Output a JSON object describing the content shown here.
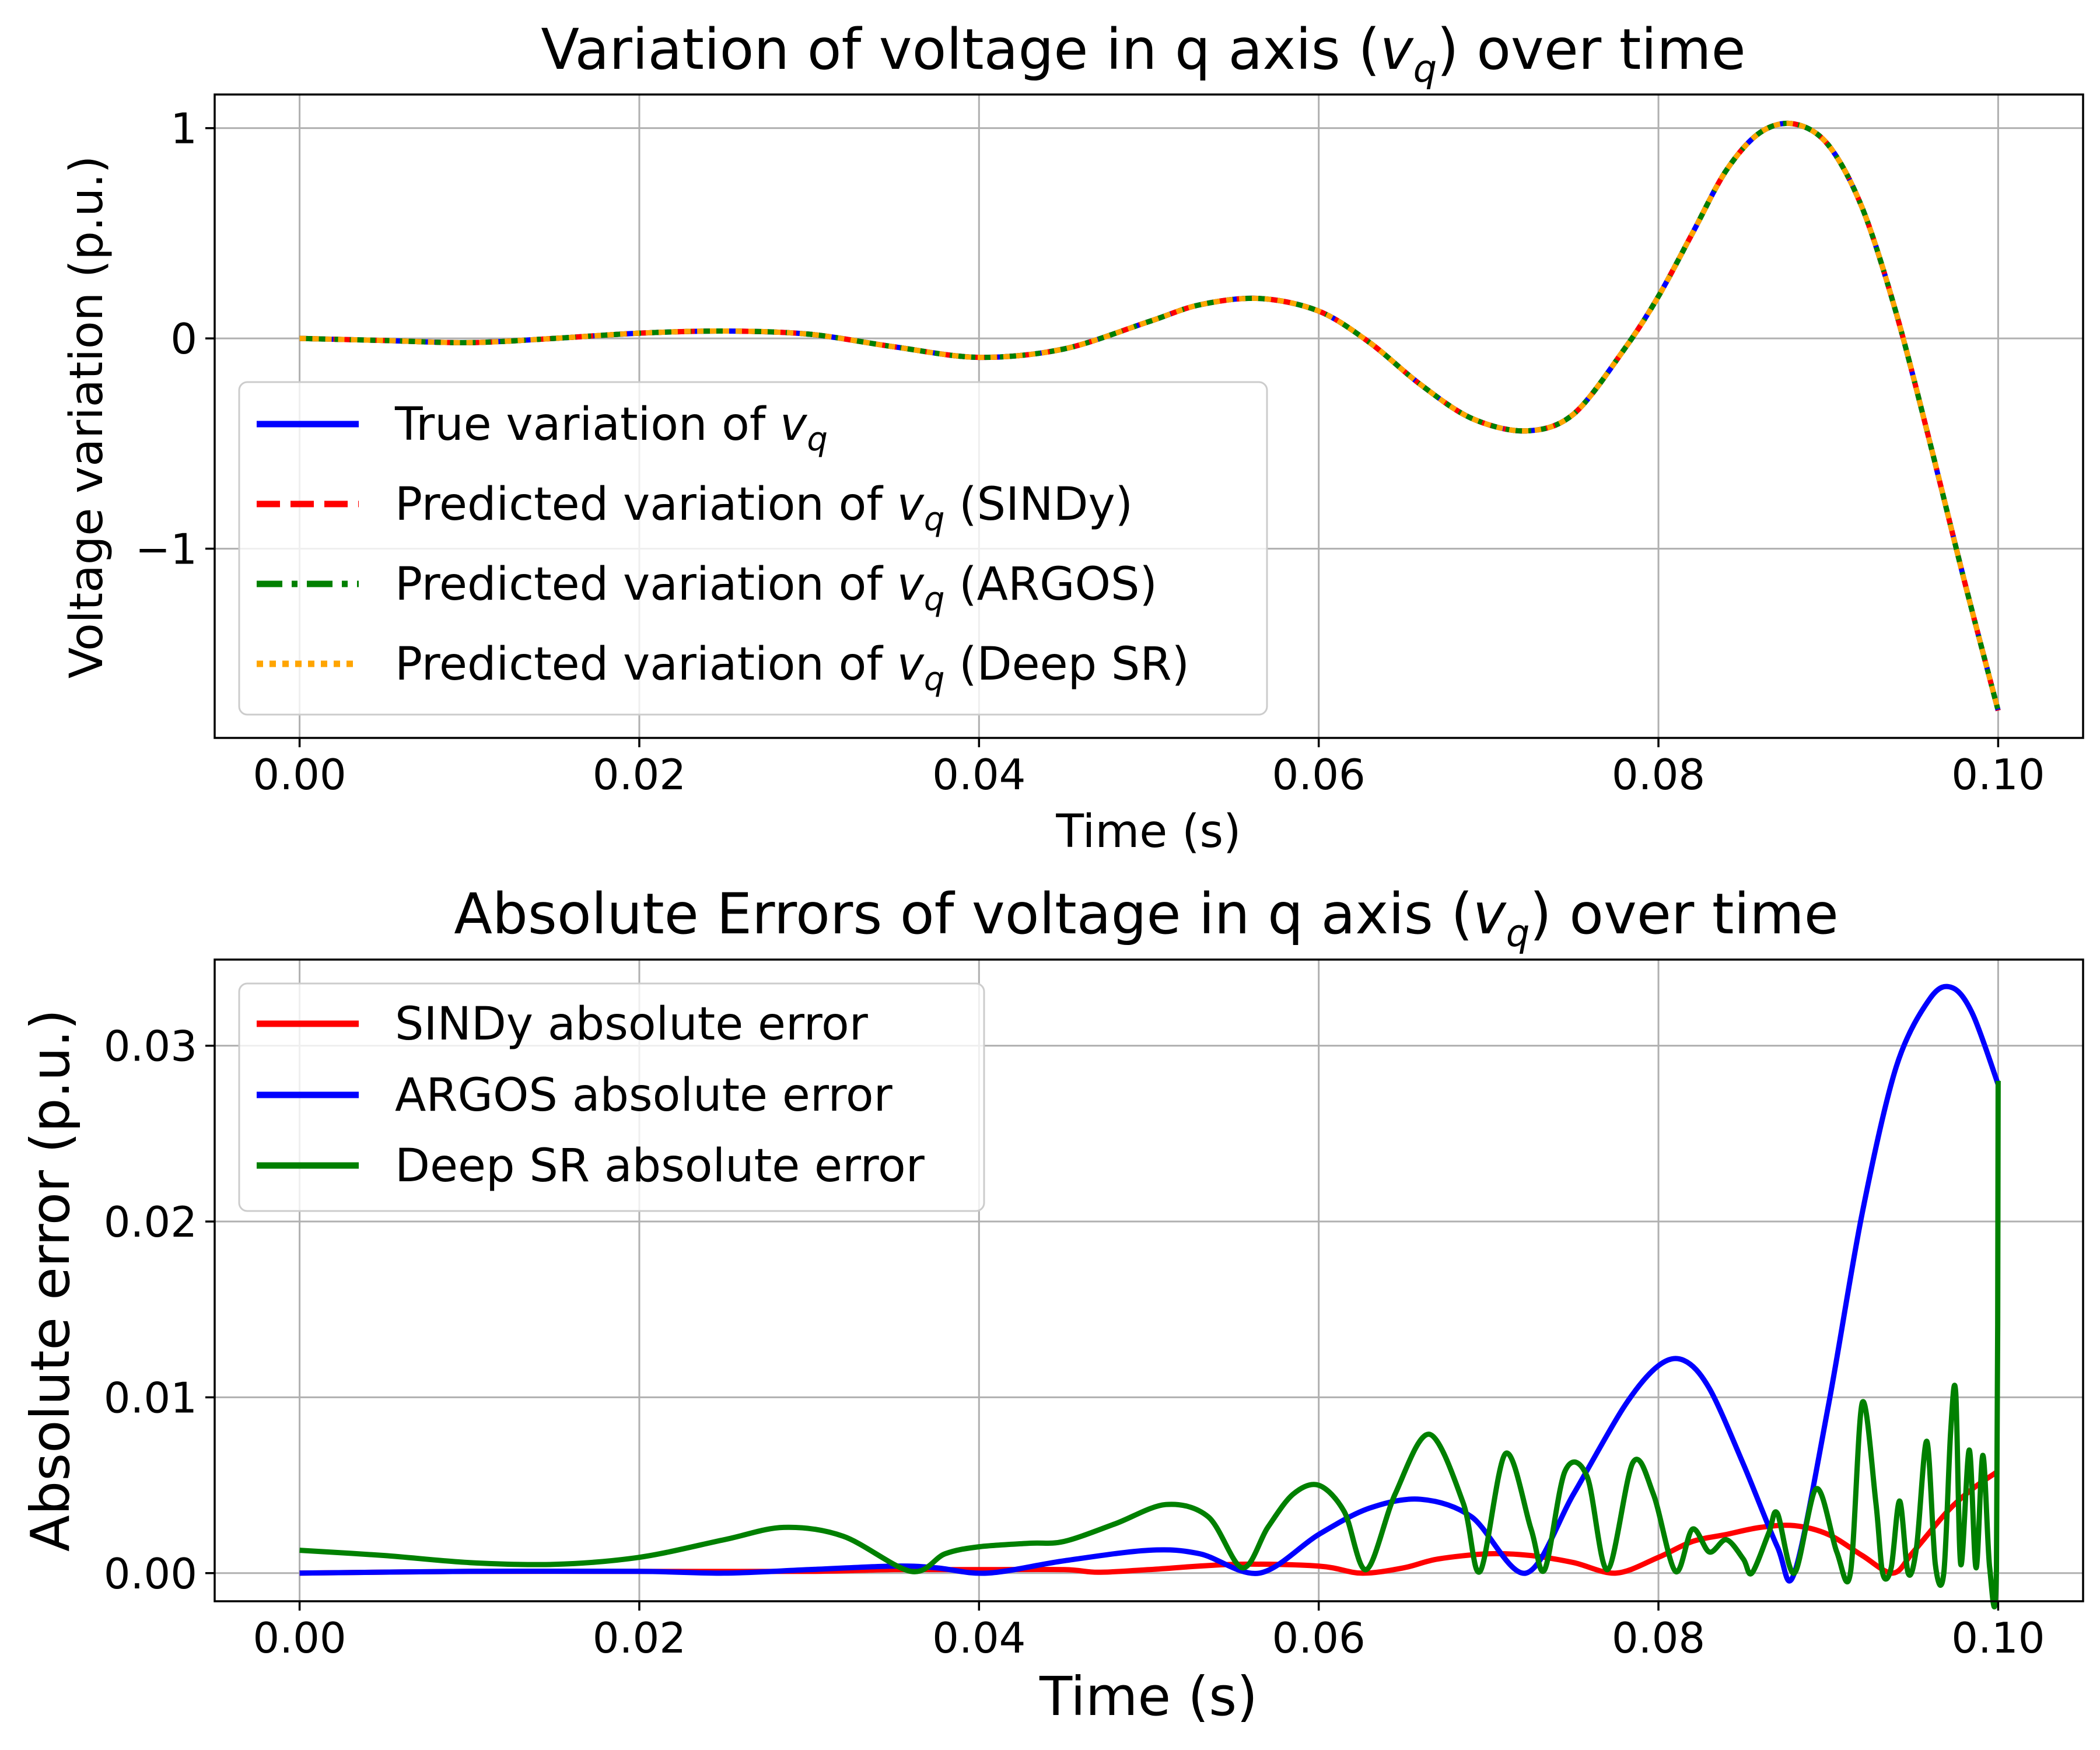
{
  "chart_data": [
    {
      "type": "line",
      "title_prefix": "Variation of voltage in q axis (",
      "title_var": "v",
      "title_sub": "q",
      "title_suffix": ") over time",
      "xlabel": "Time (s)",
      "ylabel": "Voltage variation (p.u.)",
      "xlim": [
        -0.005,
        0.105
      ],
      "ylim": [
        -1.9,
        1.16
      ],
      "xticks": [
        0.0,
        0.02,
        0.04,
        0.06,
        0.08,
        0.1
      ],
      "xtick_labels": [
        "0.00",
        "0.02",
        "0.04",
        "0.06",
        "0.08",
        "0.10"
      ],
      "yticks": [
        1,
        0,
        -1
      ],
      "ytick_labels": [
        "1",
        "0",
        "−1"
      ],
      "grid": true,
      "legend_position": "lower-left",
      "series": [
        {
          "legend_prefix": "True variation of ",
          "legend_suffix": "",
          "color": "#0000ff",
          "dash": "solid",
          "x": [
            0.0,
            0.005,
            0.01,
            0.015,
            0.02,
            0.025,
            0.03,
            0.035,
            0.04,
            0.045,
            0.05,
            0.053,
            0.0565,
            0.06,
            0.063,
            0.066,
            0.069,
            0.0722,
            0.075,
            0.078,
            0.08,
            0.082,
            0.084,
            0.086,
            0.088,
            0.09,
            0.092,
            0.094,
            0.096,
            0.098,
            0.1
          ],
          "y": [
            0.0,
            -0.01,
            -0.02,
            0.0,
            0.025,
            0.035,
            0.02,
            -0.04,
            -0.09,
            -0.05,
            0.08,
            0.16,
            0.19,
            0.13,
            -0.02,
            -0.22,
            -0.38,
            -0.44,
            -0.36,
            -0.05,
            0.2,
            0.5,
            0.8,
            0.98,
            1.02,
            0.92,
            0.62,
            0.12,
            -0.5,
            -1.15,
            -1.77
          ]
        },
        {
          "legend_prefix": "Predicted variation of ",
          "legend_suffix": " (SINDy)",
          "color": "#ff0000",
          "dash": "dashed",
          "x": [
            0.0,
            0.005,
            0.01,
            0.015,
            0.02,
            0.025,
            0.03,
            0.035,
            0.04,
            0.045,
            0.05,
            0.053,
            0.0565,
            0.06,
            0.063,
            0.066,
            0.069,
            0.0722,
            0.075,
            0.078,
            0.08,
            0.082,
            0.084,
            0.086,
            0.088,
            0.09,
            0.092,
            0.094,
            0.096,
            0.098,
            0.1
          ],
          "y": [
            0.0,
            -0.01,
            -0.02,
            0.0,
            0.025,
            0.035,
            0.02,
            -0.04,
            -0.09,
            -0.05,
            0.08,
            0.16,
            0.19,
            0.13,
            -0.02,
            -0.22,
            -0.38,
            -0.44,
            -0.36,
            -0.05,
            0.2,
            0.5,
            0.8,
            0.98,
            1.02,
            0.92,
            0.62,
            0.12,
            -0.5,
            -1.15,
            -1.77
          ]
        },
        {
          "legend_prefix": "Predicted variation of ",
          "legend_suffix": " (ARGOS)",
          "color": "#008000",
          "dash": "dashdot",
          "x": [
            0.0,
            0.005,
            0.01,
            0.015,
            0.02,
            0.025,
            0.03,
            0.035,
            0.04,
            0.045,
            0.05,
            0.053,
            0.0565,
            0.06,
            0.063,
            0.066,
            0.069,
            0.0722,
            0.075,
            0.078,
            0.08,
            0.082,
            0.084,
            0.086,
            0.088,
            0.09,
            0.092,
            0.094,
            0.096,
            0.098,
            0.1
          ],
          "y": [
            0.0,
            -0.01,
            -0.02,
            0.0,
            0.025,
            0.035,
            0.02,
            -0.04,
            -0.09,
            -0.05,
            0.08,
            0.16,
            0.19,
            0.13,
            -0.02,
            -0.22,
            -0.38,
            -0.44,
            -0.36,
            -0.05,
            0.2,
            0.5,
            0.8,
            0.98,
            1.02,
            0.92,
            0.62,
            0.12,
            -0.5,
            -1.15,
            -1.77
          ]
        },
        {
          "legend_prefix": "Predicted variation of ",
          "legend_suffix": " (Deep SR)",
          "color": "#ffa500",
          "dash": "dotted",
          "x": [
            0.0,
            0.005,
            0.01,
            0.015,
            0.02,
            0.025,
            0.03,
            0.035,
            0.04,
            0.045,
            0.05,
            0.053,
            0.0565,
            0.06,
            0.063,
            0.066,
            0.069,
            0.0722,
            0.075,
            0.078,
            0.08,
            0.082,
            0.084,
            0.086,
            0.088,
            0.09,
            0.092,
            0.094,
            0.096,
            0.098,
            0.1
          ],
          "y": [
            0.0,
            -0.01,
            -0.02,
            0.0,
            0.025,
            0.035,
            0.02,
            -0.04,
            -0.09,
            -0.05,
            0.08,
            0.16,
            0.19,
            0.13,
            -0.02,
            -0.22,
            -0.38,
            -0.44,
            -0.36,
            -0.05,
            0.2,
            0.5,
            0.8,
            0.98,
            1.02,
            0.92,
            0.62,
            0.12,
            -0.5,
            -1.15,
            -1.77
          ]
        }
      ]
    },
    {
      "type": "line",
      "title_prefix": "Absolute Errors of voltage in q axis (",
      "title_var": "v",
      "title_sub": "q",
      "title_suffix": ") over time",
      "xlabel": "Time (s)",
      "ylabel": "Absolute error (p.u.)",
      "xlim": [
        -0.005,
        0.105
      ],
      "ylim": [
        -0.0016,
        0.0349
      ],
      "xticks": [
        0.0,
        0.02,
        0.04,
        0.06,
        0.08,
        0.1
      ],
      "xtick_labels": [
        "0.00",
        "0.02",
        "0.04",
        "0.06",
        "0.08",
        "0.10"
      ],
      "yticks": [
        0.0,
        0.01,
        0.02,
        0.03
      ],
      "ytick_labels": [
        "0.00",
        "0.01",
        "0.02",
        "0.03"
      ],
      "grid": true,
      "legend_position": "upper-left",
      "series": [
        {
          "legend_prefix": "SINDy absolute error",
          "legend_suffix": "",
          "color": "#ff0000",
          "dash": "solid",
          "x": [
            0.0,
            0.01,
            0.02,
            0.03,
            0.035,
            0.04,
            0.045,
            0.047,
            0.05,
            0.055,
            0.06,
            0.0625,
            0.065,
            0.067,
            0.07,
            0.0725,
            0.075,
            0.0775,
            0.08,
            0.082,
            0.084,
            0.086,
            0.088,
            0.09,
            0.092,
            0.0938,
            0.095,
            0.097,
            0.0985,
            0.1
          ],
          "y": [
            0.0,
            0.0001,
            0.0001,
            0.0001,
            0.0002,
            0.0002,
            0.0002,
            5e-05,
            0.0002,
            0.0005,
            0.0004,
            0.0,
            0.0003,
            0.0008,
            0.0011,
            0.001,
            0.0006,
            0.0,
            0.0009,
            0.0018,
            0.0022,
            0.0026,
            0.0027,
            0.0022,
            0.001,
            0.0,
            0.0012,
            0.0035,
            0.0048,
            0.0058
          ]
        },
        {
          "legend_prefix": "ARGOS absolute error",
          "legend_suffix": "",
          "color": "#0000ff",
          "dash": "solid",
          "x": [
            0.0,
            0.01,
            0.02,
            0.025,
            0.03,
            0.035,
            0.0375,
            0.0405,
            0.045,
            0.05,
            0.053,
            0.0565,
            0.06,
            0.063,
            0.066,
            0.069,
            0.0722,
            0.075,
            0.078,
            0.08,
            0.0815,
            0.083,
            0.085,
            0.087,
            0.088,
            0.09,
            0.092,
            0.094,
            0.096,
            0.0973,
            0.0985,
            0.1
          ],
          "y": [
            0.0,
            0.0001,
            0.0001,
            0.0,
            0.0002,
            0.0004,
            0.0003,
            0.0,
            0.0007,
            0.0013,
            0.0011,
            0.0,
            0.0022,
            0.0037,
            0.0042,
            0.0032,
            0.0,
            0.0045,
            0.0095,
            0.0118,
            0.0121,
            0.0105,
            0.0062,
            0.0015,
            0.0,
            0.0095,
            0.0205,
            0.0288,
            0.0327,
            0.0333,
            0.0318,
            0.0278
          ]
        },
        {
          "legend_prefix": "Deep SR absolute error",
          "legend_suffix": "",
          "color": "#008000",
          "dash": "solid",
          "x": [
            0.0,
            0.005,
            0.01,
            0.015,
            0.02,
            0.025,
            0.0285,
            0.032,
            0.036,
            0.038,
            0.04,
            0.043,
            0.045,
            0.048,
            0.051,
            0.0535,
            0.0555,
            0.057,
            0.0585,
            0.06,
            0.0615,
            0.0628,
            0.0645,
            0.0665,
            0.0685,
            0.0695,
            0.071,
            0.0725,
            0.0733,
            0.0745,
            0.0758,
            0.077,
            0.0785,
            0.0797,
            0.081,
            0.082,
            0.083,
            0.084,
            0.085,
            0.0855,
            0.0865,
            0.087,
            0.088,
            0.0893,
            0.0905,
            0.0913,
            0.092,
            0.0928,
            0.0932,
            0.0937,
            0.0942,
            0.0947,
            0.0952,
            0.0958,
            0.0963,
            0.0968,
            0.0972,
            0.0975,
            0.0978,
            0.0983,
            0.0987,
            0.0991,
            0.0995,
            0.0999,
            0.1
          ],
          "y": [
            0.0013,
            0.001,
            0.0006,
            0.0005,
            0.0009,
            0.0019,
            0.0026,
            0.0021,
            0.0001,
            0.0011,
            0.0015,
            0.0017,
            0.0018,
            0.0028,
            0.0039,
            0.0032,
            0.0003,
            0.0026,
            0.0045,
            0.005,
            0.0035,
            0.0002,
            0.0045,
            0.0079,
            0.004,
            0.0001,
            0.0068,
            0.0025,
            0.0002,
            0.0058,
            0.0055,
            0.0002,
            0.0063,
            0.0045,
            0.0001,
            0.0025,
            0.0012,
            0.0019,
            0.0008,
            0.0,
            0.0023,
            0.0034,
            0.0,
            0.0048,
            0.0012,
            0.0,
            0.0097,
            0.004,
            0.0,
            0.0003,
            0.0041,
            0.0,
            0.0015,
            0.0075,
            0.0005,
            0.0,
            0.008,
            0.0103,
            0.0005,
            0.007,
            0.0003,
            0.0067,
            0.0003,
            0.0003,
            0.028
          ]
        }
      ]
    }
  ]
}
